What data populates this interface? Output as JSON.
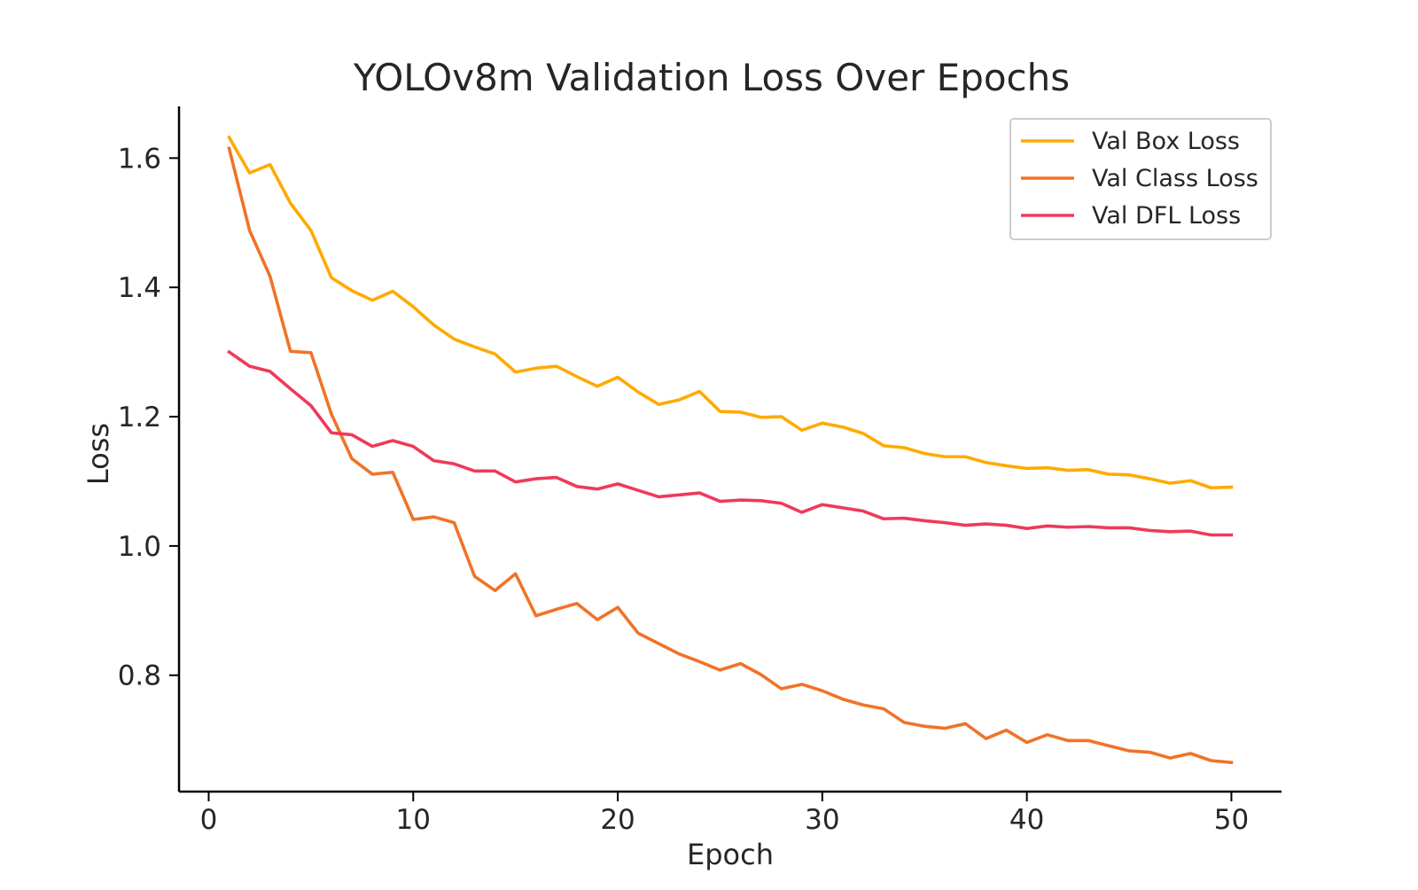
{
  "chart_data": {
    "type": "line",
    "title": "YOLOv8m Validation Loss Over Epochs",
    "xlabel": "Epoch",
    "ylabel": "Loss",
    "xlim": [
      -1.45,
      52.45
    ],
    "ylim": [
      0.62,
      1.68
    ],
    "xticks": [
      0,
      10,
      20,
      30,
      40,
      50
    ],
    "yticks": [
      0.8,
      1.0,
      1.2,
      1.4,
      1.6
    ],
    "xtick_labels": [
      "0",
      "10",
      "20",
      "30",
      "40",
      "50"
    ],
    "ytick_labels": [
      "0.8",
      "1.0",
      "1.2",
      "1.4",
      "1.6"
    ],
    "grid": false,
    "legend_position": "top-right",
    "x": [
      1,
      2,
      3,
      4,
      5,
      6,
      7,
      8,
      9,
      10,
      11,
      12,
      13,
      14,
      15,
      16,
      17,
      18,
      19,
      20,
      21,
      22,
      23,
      24,
      25,
      26,
      27,
      28,
      29,
      30,
      31,
      32,
      33,
      34,
      35,
      36,
      37,
      38,
      39,
      40,
      41,
      42,
      43,
      44,
      45,
      46,
      47,
      48,
      49,
      50
    ],
    "series": [
      {
        "name": "Val Box Loss",
        "color": "#FFAA00",
        "values": [
          1.632,
          1.577,
          1.59,
          1.53,
          1.488,
          1.415,
          1.395,
          1.38,
          1.394,
          1.37,
          1.342,
          1.32,
          1.308,
          1.297,
          1.269,
          1.275,
          1.278,
          1.262,
          1.247,
          1.261,
          1.238,
          1.219,
          1.226,
          1.239,
          1.208,
          1.207,
          1.199,
          1.2,
          1.179,
          1.19,
          1.184,
          1.174,
          1.155,
          1.152,
          1.143,
          1.138,
          1.138,
          1.129,
          1.124,
          1.12,
          1.121,
          1.117,
          1.118,
          1.111,
          1.11,
          1.104,
          1.097,
          1.101,
          1.09,
          1.091
        ]
      },
      {
        "name": "Val Class Loss",
        "color": "#F07328",
        "values": [
          1.615,
          1.488,
          1.417,
          1.301,
          1.299,
          1.204,
          1.135,
          1.111,
          1.114,
          1.041,
          1.045,
          1.036,
          0.953,
          0.931,
          0.957,
          0.892,
          0.902,
          0.911,
          0.886,
          0.905,
          0.865,
          0.849,
          0.833,
          0.821,
          0.808,
          0.818,
          0.801,
          0.779,
          0.786,
          0.776,
          0.763,
          0.754,
          0.748,
          0.727,
          0.721,
          0.718,
          0.725,
          0.702,
          0.715,
          0.696,
          0.708,
          0.699,
          0.699,
          0.691,
          0.683,
          0.681,
          0.672,
          0.679,
          0.668,
          0.665
        ]
      },
      {
        "name": "Val DFL Loss",
        "color": "#EE3A5A",
        "values": [
          1.3,
          1.278,
          1.27,
          1.243,
          1.217,
          1.175,
          1.172,
          1.154,
          1.163,
          1.154,
          1.132,
          1.127,
          1.116,
          1.116,
          1.099,
          1.104,
          1.106,
          1.092,
          1.088,
          1.096,
          1.086,
          1.076,
          1.079,
          1.082,
          1.069,
          1.071,
          1.07,
          1.066,
          1.052,
          1.064,
          1.059,
          1.054,
          1.042,
          1.043,
          1.039,
          1.036,
          1.032,
          1.034,
          1.032,
          1.027,
          1.031,
          1.029,
          1.03,
          1.028,
          1.028,
          1.024,
          1.022,
          1.023,
          1.017,
          1.017
        ]
      }
    ]
  }
}
